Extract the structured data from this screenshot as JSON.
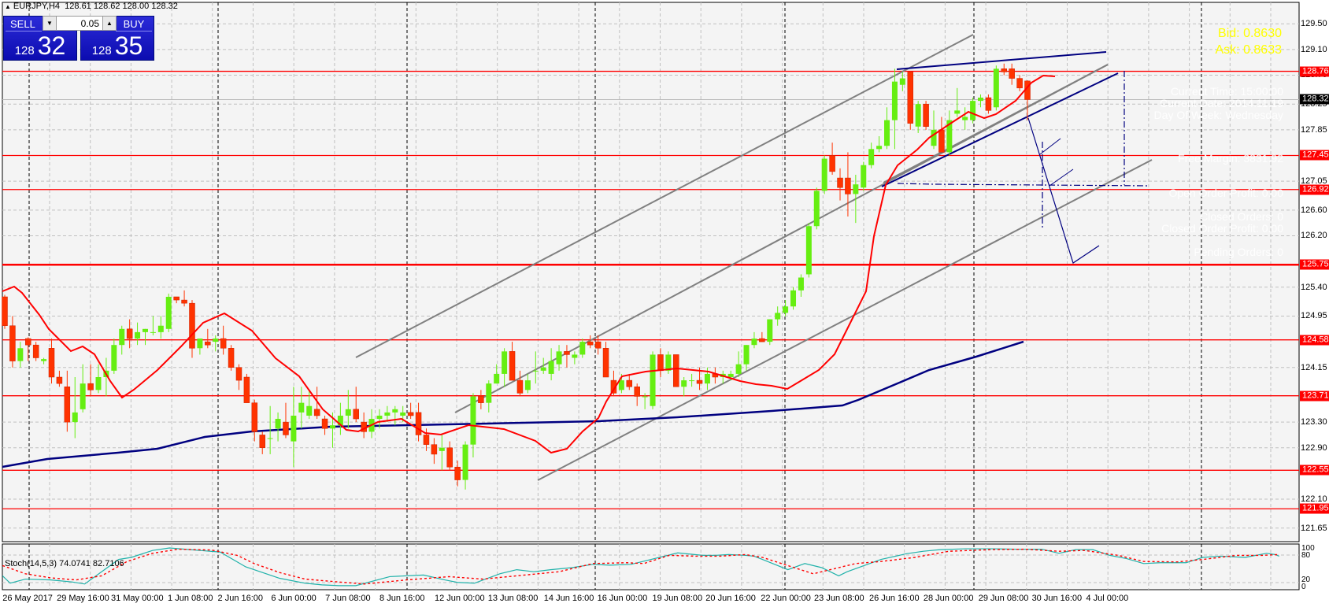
{
  "window": {
    "symbol_title": "EURJPY,H4",
    "ohlc": "128.61 128.62 128.00 128.32"
  },
  "one_click": {
    "sell_label": "SELL",
    "buy_label": "BUY",
    "lot_value": "0.05",
    "sell_price_prefix": "128",
    "sell_price_pips": "32",
    "buy_price_prefix": "128",
    "buy_price_pips": "35"
  },
  "overlay": {
    "bid": "Bid: 0.8630",
    "ask": "Ask: 0.8633",
    "current_time": "Current Time: 15:00:00",
    "current_date": "Current Date: 2014.11.19",
    "day_of_week": "Day Of Week: Wednesday",
    "free_margin": "Free Margin: 3831.92",
    "open_order_profit": "Open Order Profit: 0.00",
    "closed_orders": "Closed Orders: 0",
    "closed_order_profit": "Closed Order Profit: 0.00",
    "pending_orders": "Pending Orders: 0"
  },
  "colors": {
    "background": "#f4f4f4",
    "grid": "#c0c0c0",
    "bull": "#66ee11",
    "bear": "#ff3300",
    "level_line": "#ff0000",
    "ma_fast": "#ff0000",
    "ma_slow": "#000080",
    "channel": "#808080",
    "stoch_main": "#20b2aa",
    "stoch_signal": "#ff0000"
  },
  "price_axis": {
    "ticks": [
      "129.50",
      "129.10",
      "128.70",
      "128.25",
      "127.85",
      "127.05",
      "126.60",
      "126.20",
      "125.40",
      "124.95",
      "124.15",
      "123.30",
      "122.90",
      "122.10",
      "121.65"
    ],
    "level_tags": [
      "128.76",
      "127.45",
      "126.92",
      "125.75",
      "124.58",
      "123.71",
      "122.55",
      "121.95"
    ],
    "current_price": "128.32"
  },
  "stoch": {
    "label": "Stoch(14,5,3) 74.0741 82.7106",
    "axis": [
      "100",
      "80",
      "20",
      "0"
    ]
  },
  "time_axis": [
    "26 May 2017",
    "29 May 16:00",
    "31 May 00:00",
    "1 Jun 08:00",
    "2 Jun 16:00",
    "6 Jun 00:00",
    "7 Jun 08:00",
    "8 Jun 16:00",
    "12 Jun 00:00",
    "13 Jun 08:00",
    "14 Jun 16:00",
    "16 Jun 00:00",
    "19 Jun 08:00",
    "20 Jun 16:00",
    "22 Jun 00:00",
    "23 Jun 08:00",
    "26 Jun 16:00",
    "28 Jun 00:00",
    "29 Jun 08:00",
    "30 Jun 16:00",
    "4 Jul 00:00"
  ],
  "chart_data": {
    "type": "candlestick",
    "title": "EURJPY,H4",
    "ylim": [
      121.5,
      129.7
    ],
    "levels": [
      128.76,
      127.45,
      126.92,
      125.75,
      124.58,
      123.71,
      122.55,
      121.95
    ],
    "candles": [
      [
        125.25,
        125.28,
        124.75,
        124.8
      ],
      [
        124.8,
        124.95,
        124.15,
        124.25
      ],
      [
        124.25,
        124.55,
        124.15,
        124.45
      ],
      [
        124.6,
        124.62,
        124.25,
        124.5
      ],
      [
        124.5,
        124.55,
        124.25,
        124.3
      ],
      [
        124.25,
        124.3,
        124.2,
        124.28
      ],
      [
        124.45,
        124.6,
        123.9,
        124.0
      ],
      [
        124.0,
        124.1,
        123.85,
        123.9
      ],
      [
        123.85,
        124.1,
        123.15,
        123.3
      ],
      [
        123.3,
        124.0,
        123.05,
        123.45
      ],
      [
        123.5,
        124.2,
        123.45,
        123.9
      ],
      [
        123.9,
        124.2,
        123.7,
        123.8
      ],
      [
        123.8,
        124.2,
        123.75,
        124.0
      ],
      [
        124.0,
        124.3,
        123.7,
        124.1
      ],
      [
        124.1,
        124.6,
        124.05,
        124.5
      ],
      [
        124.5,
        124.8,
        124.35,
        124.75
      ],
      [
        124.75,
        124.9,
        124.45,
        124.6
      ],
      [
        124.6,
        124.85,
        124.5,
        124.7
      ],
      [
        124.7,
        124.75,
        124.5,
        124.75
      ],
      [
        124.7,
        124.95,
        124.65,
        124.7
      ],
      [
        124.7,
        124.95,
        124.6,
        124.8
      ],
      [
        124.75,
        125.3,
        124.7,
        125.25
      ],
      [
        125.25,
        125.25,
        125.15,
        125.2
      ],
      [
        125.2,
        125.35,
        125.1,
        125.15
      ],
      [
        125.15,
        125.2,
        124.3,
        124.45
      ],
      [
        124.45,
        124.6,
        124.35,
        124.6
      ],
      [
        124.55,
        124.75,
        124.45,
        124.5
      ],
      [
        124.55,
        124.65,
        124.4,
        124.6
      ],
      [
        124.6,
        124.8,
        124.35,
        124.45
      ],
      [
        124.45,
        124.5,
        124.1,
        124.15
      ],
      [
        124.15,
        124.2,
        123.8,
        123.95
      ],
      [
        124.0,
        124.05,
        123.6,
        123.6
      ],
      [
        123.6,
        123.65,
        123.0,
        123.15
      ],
      [
        123.1,
        123.15,
        122.8,
        122.9
      ],
      [
        123.05,
        123.55,
        122.8,
        123.05
      ],
      [
        123.2,
        123.45,
        123.0,
        123.35
      ],
      [
        123.3,
        123.6,
        123.05,
        123.1
      ],
      [
        123.0,
        123.85,
        122.6,
        123.4
      ],
      [
        123.45,
        123.85,
        123.2,
        123.6
      ],
      [
        123.4,
        123.8,
        123.35,
        123.55
      ],
      [
        123.5,
        123.85,
        123.35,
        123.4
      ],
      [
        123.35,
        123.4,
        123.1,
        123.2
      ],
      [
        123.2,
        123.45,
        122.9,
        123.25
      ],
      [
        123.25,
        123.6,
        123.1,
        123.4
      ],
      [
        123.4,
        123.8,
        123.2,
        123.5
      ],
      [
        123.5,
        123.85,
        123.3,
        123.35
      ],
      [
        123.3,
        123.45,
        123.05,
        123.15
      ],
      [
        123.15,
        123.5,
        123.05,
        123.35
      ],
      [
        123.35,
        123.5,
        123.2,
        123.4
      ],
      [
        123.4,
        123.55,
        123.3,
        123.45
      ],
      [
        123.45,
        123.55,
        123.25,
        123.5
      ],
      [
        123.4,
        123.55,
        123.3,
        123.45
      ],
      [
        123.45,
        123.6,
        123.35,
        123.4
      ],
      [
        123.45,
        123.6,
        123.0,
        123.1
      ],
      [
        123.1,
        123.2,
        122.85,
        122.95
      ],
      [
        122.95,
        123.05,
        122.65,
        122.8
      ],
      [
        122.85,
        123.1,
        122.55,
        122.9
      ],
      [
        122.9,
        123.0,
        122.55,
        122.6
      ],
      [
        122.6,
        122.7,
        122.3,
        122.4
      ],
      [
        122.4,
        123.0,
        122.25,
        122.95
      ],
      [
        122.95,
        123.75,
        122.75,
        123.7
      ],
      [
        123.7,
        123.8,
        123.5,
        123.6
      ],
      [
        123.6,
        123.95,
        123.45,
        123.9
      ],
      [
        123.9,
        124.2,
        123.9,
        124.05
      ],
      [
        124.05,
        124.45,
        123.85,
        124.4
      ],
      [
        124.4,
        124.55,
        123.95,
        123.95
      ],
      [
        123.95,
        124.1,
        123.7,
        123.75
      ],
      [
        123.8,
        124.05,
        123.75,
        123.95
      ],
      [
        124.1,
        124.4,
        123.9,
        124.1
      ],
      [
        124.1,
        124.3,
        124.05,
        124.15
      ],
      [
        124.05,
        124.45,
        123.95,
        124.25
      ],
      [
        124.2,
        124.5,
        124.1,
        124.4
      ],
      [
        124.4,
        124.5,
        124.15,
        124.35
      ],
      [
        124.3,
        124.4,
        124.2,
        124.35
      ],
      [
        124.35,
        124.6,
        124.3,
        124.55
      ],
      [
        124.55,
        124.65,
        124.45,
        124.5
      ],
      [
        124.55,
        124.65,
        124.35,
        124.45
      ],
      [
        124.45,
        124.55,
        124.0,
        124.0
      ],
      [
        123.95,
        124.1,
        123.7,
        123.75
      ],
      [
        123.8,
        124.05,
        123.75,
        123.95
      ],
      [
        123.95,
        124.05,
        123.8,
        123.85
      ],
      [
        123.85,
        123.9,
        123.55,
        123.7
      ],
      [
        123.7,
        123.75,
        123.5,
        123.7
      ],
      [
        123.55,
        124.4,
        123.5,
        124.35
      ],
      [
        124.35,
        124.45,
        124.0,
        124.1
      ],
      [
        124.1,
        124.4,
        124.05,
        124.35
      ],
      [
        124.35,
        124.35,
        123.85,
        123.85
      ],
      [
        123.85,
        124.0,
        123.7,
        123.95
      ],
      [
        123.95,
        124.05,
        123.85,
        123.95
      ],
      [
        123.95,
        124.15,
        123.8,
        123.9
      ],
      [
        123.9,
        124.15,
        123.8,
        124.05
      ],
      [
        124.05,
        124.15,
        123.9,
        124.0
      ],
      [
        124.0,
        124.1,
        123.9,
        124.05
      ],
      [
        124.0,
        124.1,
        123.95,
        124.05
      ],
      [
        124.05,
        124.4,
        124.0,
        124.2
      ],
      [
        124.2,
        124.5,
        124.1,
        124.5
      ],
      [
        124.5,
        124.7,
        124.45,
        124.6
      ],
      [
        124.6,
        124.7,
        124.55,
        124.55
      ],
      [
        124.55,
        124.9,
        124.5,
        124.9
      ],
      [
        124.9,
        125.1,
        124.8,
        125.0
      ],
      [
        125.0,
        125.2,
        124.95,
        125.1
      ],
      [
        125.1,
        125.4,
        125.05,
        125.35
      ],
      [
        125.35,
        125.6,
        125.25,
        125.55
      ],
      [
        125.6,
        126.4,
        125.55,
        126.35
      ],
      [
        126.35,
        126.95,
        126.3,
        126.9
      ],
      [
        126.9,
        127.45,
        126.85,
        127.4
      ],
      [
        127.45,
        127.65,
        127.15,
        127.2
      ],
      [
        127.1,
        127.25,
        126.75,
        126.95
      ],
      [
        127.1,
        127.5,
        126.5,
        126.85
      ],
      [
        126.85,
        127.15,
        126.4,
        127.0
      ],
      [
        126.95,
        127.35,
        126.9,
        127.3
      ],
      [
        127.3,
        127.65,
        127.25,
        127.55
      ],
      [
        127.55,
        127.75,
        127.5,
        127.6
      ],
      [
        127.6,
        128.2,
        127.55,
        128.0
      ],
      [
        128.0,
        128.8,
        127.55,
        128.6
      ],
      [
        128.55,
        128.75,
        128.45,
        128.65
      ],
      [
        128.75,
        128.76,
        127.85,
        127.95
      ],
      [
        127.9,
        128.3,
        127.8,
        128.25
      ],
      [
        128.25,
        128.3,
        127.85,
        127.9
      ],
      [
        127.6,
        128.15,
        127.55,
        127.85
      ],
      [
        127.85,
        128.05,
        127.5,
        127.5
      ],
      [
        127.5,
        128.15,
        127.45,
        128.0
      ],
      [
        128.1,
        128.5,
        128.05,
        128.15
      ],
      [
        128.0,
        128.2,
        127.85,
        128.05
      ],
      [
        128.0,
        128.35,
        127.95,
        128.3
      ],
      [
        128.3,
        128.4,
        128.2,
        128.35
      ],
      [
        128.35,
        128.4,
        128.1,
        128.15
      ],
      [
        128.2,
        128.85,
        128.15,
        128.8
      ],
      [
        128.8,
        128.88,
        128.7,
        128.75
      ],
      [
        128.8,
        128.88,
        128.55,
        128.65
      ],
      [
        128.65,
        128.7,
        128.45,
        128.5
      ],
      [
        128.61,
        128.62,
        128.0,
        128.32
      ]
    ]
  }
}
